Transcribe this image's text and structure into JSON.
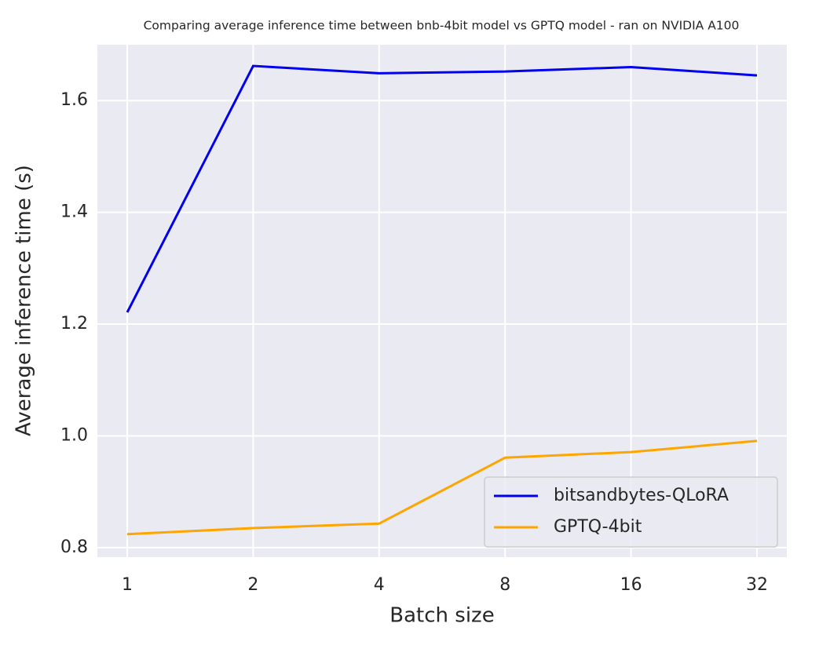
{
  "chart_data": {
    "type": "line",
    "title": "Comparing  average inference time between bnb-4bit model vs GPTQ model - ran on NVIDIA A100",
    "x_label": "Batch size",
    "y_label": "Average inference time (s)",
    "categories": [
      "1",
      "2",
      "4",
      "8",
      "16",
      "32"
    ],
    "series": [
      {
        "name": "bitsandbytes-QLoRA",
        "color": "#0000ee",
        "values": [
          1.221,
          1.662,
          1.649,
          1.652,
          1.66,
          1.645
        ]
      },
      {
        "name": "GPTQ-4bit",
        "color": "#ffa500",
        "values": [
          0.824,
          0.835,
          0.843,
          0.961,
          0.971,
          0.991
        ]
      }
    ],
    "ylim": [
      0.783,
      1.7
    ],
    "yticks": [
      0.8,
      {
        "value": 1,
        "label": "1.0"
      },
      1.2,
      1.4,
      1.6
    ],
    "grid": true,
    "legend": "lower right"
  }
}
